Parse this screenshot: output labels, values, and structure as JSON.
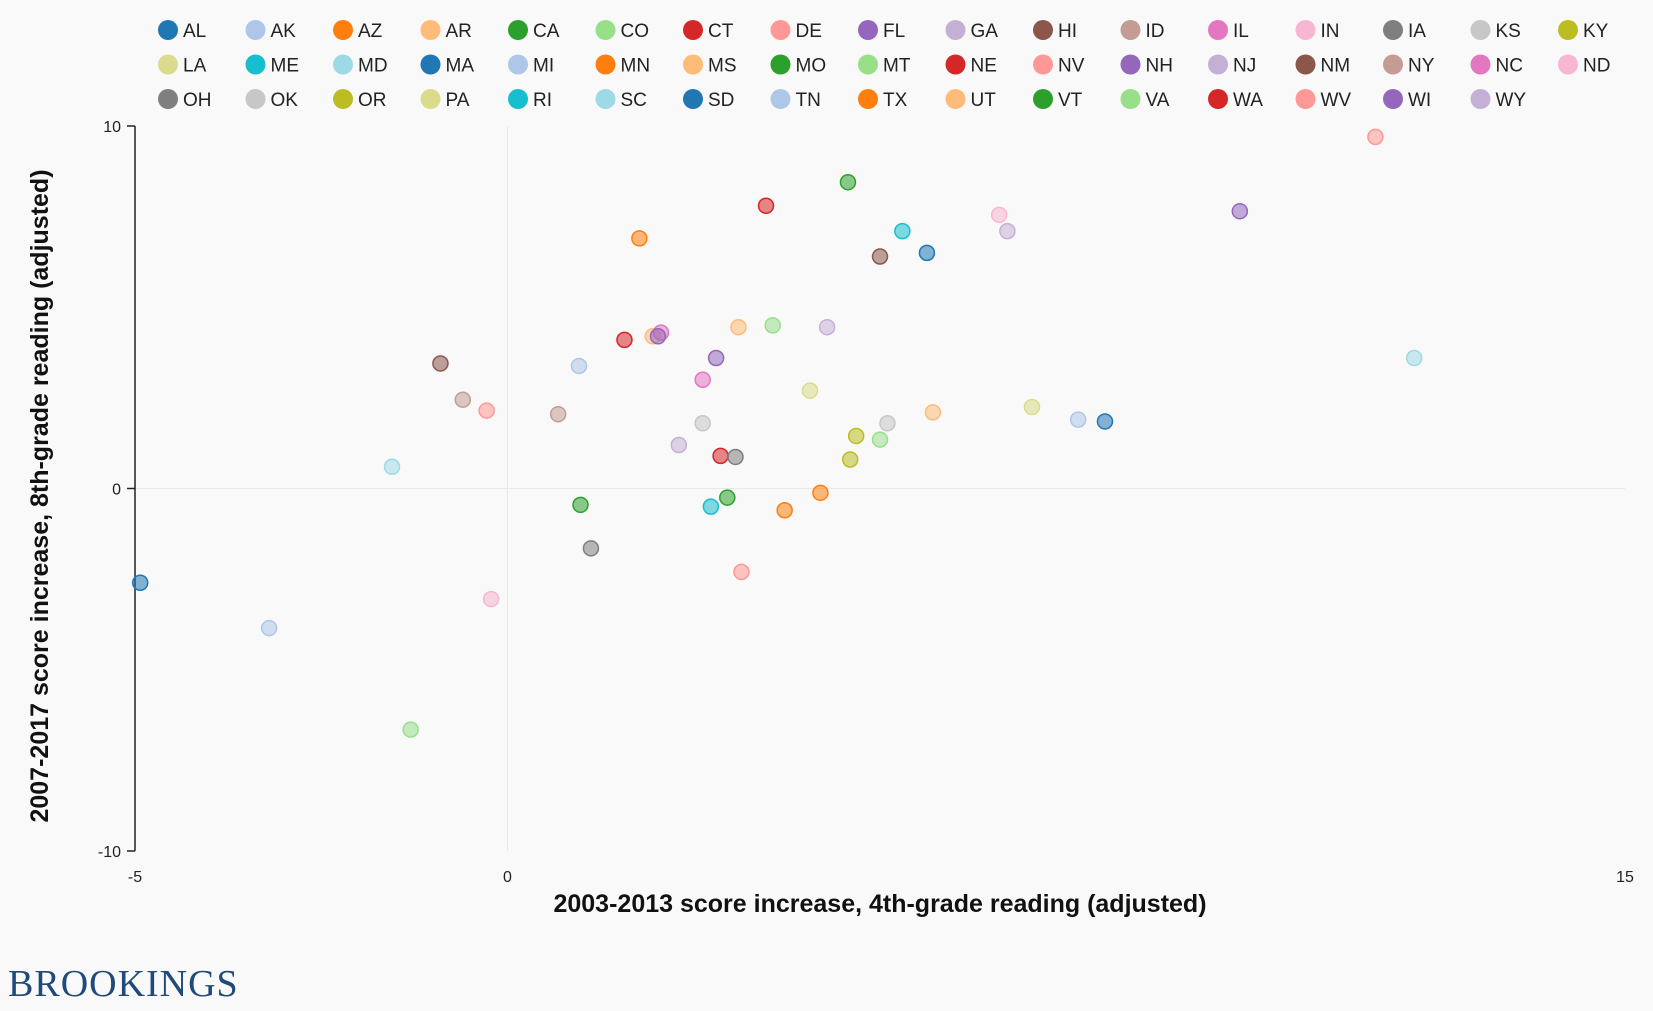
{
  "branding": {
    "logo_text": "BROOKINGS"
  },
  "colors": {
    "AL": "#1f77b4",
    "AK": "#aec7e8",
    "AZ": "#ff7f0e",
    "AR": "#ffbb78",
    "CA": "#2ca02c",
    "CO": "#98df8a",
    "CT": "#d62728",
    "DE": "#ff9896",
    "FL": "#9467bd",
    "GA": "#c5b0d5",
    "HI": "#8c564b",
    "ID": "#c49c94",
    "IL": "#e377c2",
    "IN": "#f7b6d2",
    "IA": "#7f7f7f",
    "KS": "#c7c7c7",
    "KY": "#bcbd22",
    "LA": "#dbdb8d",
    "ME": "#17becf",
    "MD": "#9edae5",
    "MA": "#1f77b4",
    "MI": "#aec7e8",
    "MN": "#ff7f0e",
    "MS": "#ffbb78",
    "MO": "#2ca02c",
    "MT": "#98df8a",
    "NE": "#d62728",
    "NV": "#ff9896",
    "NH": "#9467bd",
    "NJ": "#c5b0d5",
    "NM": "#8c564b",
    "NY": "#c49c94",
    "NC": "#e377c2",
    "ND": "#f7b6d2",
    "OH": "#7f7f7f",
    "OK": "#c7c7c7",
    "OR": "#bcbd22",
    "PA": "#dbdb8d",
    "RI": "#17becf",
    "SC": "#9edae5",
    "SD": "#1f77b4",
    "TN": "#aec7e8",
    "TX": "#ff7f0e",
    "UT": "#ffbb78",
    "VT": "#2ca02c",
    "VA": "#98df8a",
    "WA": "#d62728",
    "WV": "#ff9896",
    "WI": "#9467bd",
    "WY": "#c5b0d5"
  },
  "chart_data": {
    "type": "scatter",
    "xlabel": "2003-2013 score increase, 4th-grade reading (adjusted)",
    "ylabel": "2007-2017 score increase, 8th-grade reading (adjusted)",
    "xlim": [
      -5,
      15
    ],
    "ylim": [
      -10,
      10
    ],
    "xticks": [
      "-5",
      "0",
      "15"
    ],
    "yticks": [
      "10",
      "0",
      "-10"
    ],
    "grid": "zero lines only",
    "legend_position": "top",
    "legend": [
      "AL",
      "AK",
      "AZ",
      "AR",
      "CA",
      "CO",
      "CT",
      "DE",
      "FL",
      "GA",
      "HI",
      "ID",
      "IL",
      "IN",
      "IA",
      "KS",
      "KY",
      "LA",
      "ME",
      "MD",
      "MA",
      "MI",
      "MN",
      "MS",
      "MO",
      "MT",
      "NE",
      "NV",
      "NH",
      "NJ",
      "NM",
      "NY",
      "NC",
      "ND",
      "OH",
      "OK",
      "OR",
      "PA",
      "RI",
      "SC",
      "SD",
      "TN",
      "TX",
      "UT",
      "VT",
      "VA",
      "WA",
      "WV",
      "WI",
      "WY"
    ],
    "points": [
      {
        "state": "SD",
        "x": -4.93,
        "y": -2.6
      },
      {
        "state": "AK",
        "x": -3.2,
        "y": -3.85
      },
      {
        "state": "MD",
        "x": -1.55,
        "y": 0.6
      },
      {
        "state": "CO",
        "x": -1.3,
        "y": -6.65
      },
      {
        "state": "NM",
        "x": -0.9,
        "y": 3.45
      },
      {
        "state": "NY",
        "x": -0.6,
        "y": 2.45
      },
      {
        "state": "DE",
        "x": -0.28,
        "y": 2.15
      },
      {
        "state": "ND",
        "x": -0.22,
        "y": -3.05
      },
      {
        "state": "ID",
        "x": 0.68,
        "y": 2.05
      },
      {
        "state": "TN",
        "x": 0.96,
        "y": 3.38
      },
      {
        "state": "MO",
        "x": 0.98,
        "y": -0.45
      },
      {
        "state": "IA",
        "x": 1.12,
        "y": -1.65
      },
      {
        "state": "WA",
        "x": 1.57,
        "y": 4.1
      },
      {
        "state": "MN",
        "x": 1.77,
        "y": 6.9
      },
      {
        "state": "UT",
        "x": 1.95,
        "y": 4.2
      },
      {
        "state": "IL",
        "x": 2.06,
        "y": 4.3
      },
      {
        "state": "NH",
        "x": 2.02,
        "y": 4.2
      },
      {
        "state": "NJ",
        "x": 2.3,
        "y": 1.2
      },
      {
        "state": "KS",
        "x": 2.62,
        "y": 1.8
      },
      {
        "state": "NC",
        "x": 2.62,
        "y": 3.0
      },
      {
        "state": "ME",
        "x": 2.73,
        "y": -0.5
      },
      {
        "state": "WI",
        "x": 2.8,
        "y": 3.6
      },
      {
        "state": "NE",
        "x": 2.86,
        "y": 0.9
      },
      {
        "state": "VT",
        "x": 2.95,
        "y": -0.25
      },
      {
        "state": "OH",
        "x": 3.06,
        "y": 0.87
      },
      {
        "state": "AR",
        "x": 3.1,
        "y": 4.45
      },
      {
        "state": "NV",
        "x": 3.14,
        "y": -2.3
      },
      {
        "state": "CT",
        "x": 3.47,
        "y": 7.8
      },
      {
        "state": "AZ",
        "x": 3.72,
        "y": -0.6
      },
      {
        "state": "VA",
        "x": 3.56,
        "y": 4.5
      },
      {
        "state": "LA",
        "x": 4.06,
        "y": 2.7
      },
      {
        "state": "TX",
        "x": 4.2,
        "y": -0.12
      },
      {
        "state": "GA",
        "x": 4.29,
        "y": 4.45
      },
      {
        "state": "OR",
        "x": 4.6,
        "y": 0.8
      },
      {
        "state": "CA",
        "x": 4.57,
        "y": 8.45
      },
      {
        "state": "KY",
        "x": 4.68,
        "y": 1.45
      },
      {
        "state": "MT",
        "x": 5.0,
        "y": 1.35
      },
      {
        "state": "HI",
        "x": 5.0,
        "y": 6.4
      },
      {
        "state": "OK",
        "x": 5.1,
        "y": 1.8
      },
      {
        "state": "RI",
        "x": 5.3,
        "y": 7.1
      },
      {
        "state": "MA",
        "x": 5.63,
        "y": 6.5
      },
      {
        "state": "MS",
        "x": 5.71,
        "y": 2.1
      },
      {
        "state": "IN",
        "x": 6.6,
        "y": 7.55
      },
      {
        "state": "WY",
        "x": 6.71,
        "y": 7.1
      },
      {
        "state": "PA",
        "x": 7.04,
        "y": 2.25
      },
      {
        "state": "MI",
        "x": 7.66,
        "y": 1.9
      },
      {
        "state": "AL",
        "x": 8.02,
        "y": 1.85
      },
      {
        "state": "FL",
        "x": 9.83,
        "y": 7.65
      },
      {
        "state": "WV",
        "x": 11.65,
        "y": 9.7
      },
      {
        "state": "SC",
        "x": 12.17,
        "y": 3.6
      }
    ]
  }
}
